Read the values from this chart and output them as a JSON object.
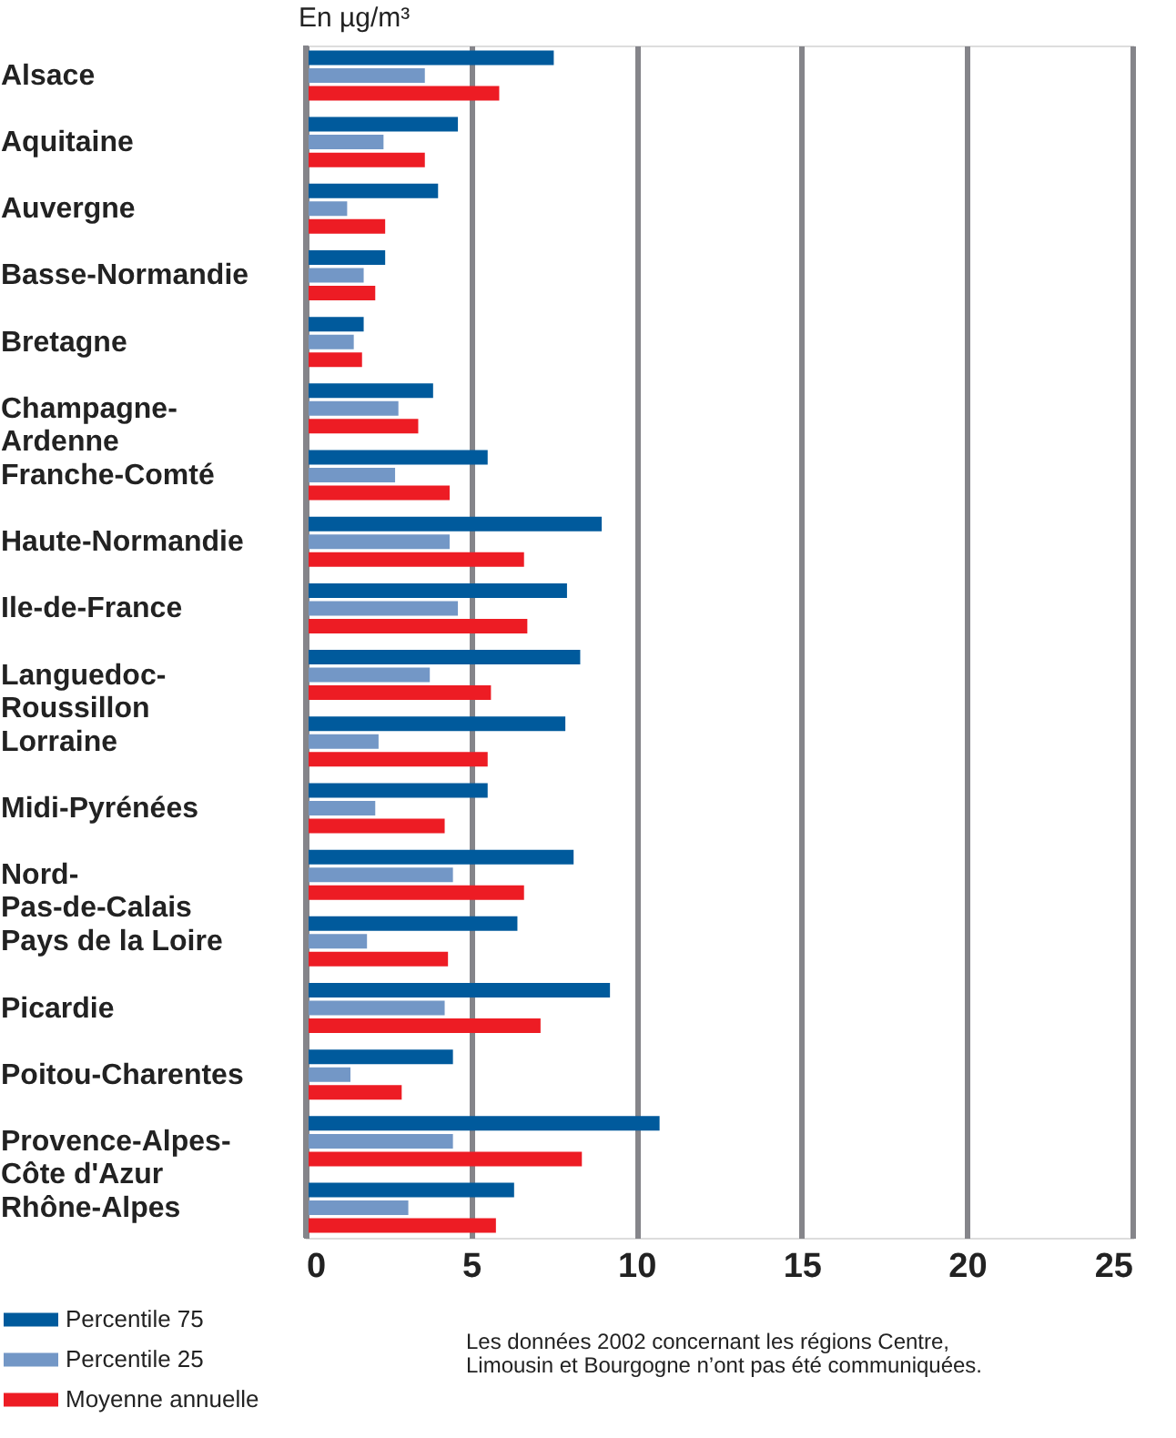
{
  "chart_data": {
    "type": "bar",
    "orientation": "horizontal",
    "xlabel": "En µg/m³",
    "categories": [
      "Alsace",
      "Aquitaine",
      "Auvergne",
      "Basse-Normandie",
      "Bretagne",
      "Champagne-Ardenne",
      "Franche-Comté",
      "Haute-Normandie",
      "Ile-de-France",
      "Languedoc-Roussillon",
      "Lorraine",
      "Midi-Pyrénées",
      "Nord-Pas-de-Calais",
      "Pays de la Loire",
      "Picardie",
      "Poitou-Charentes",
      "Provence-Alpes-Côte d'Azur",
      "Rhône-Alpes"
    ],
    "series": [
      {
        "name": "Percentile 75",
        "color": "#005a9c",
        "values": [
          7.5,
          4.6,
          4.0,
          2.4,
          1.75,
          3.85,
          5.5,
          8.95,
          7.9,
          8.3,
          7.85,
          5.5,
          8.1,
          6.4,
          9.2,
          4.45,
          10.7,
          6.3
        ]
      },
      {
        "name": "Percentile 25",
        "color": "#7397c6",
        "values": [
          3.6,
          2.35,
          1.25,
          1.75,
          1.45,
          2.8,
          2.7,
          4.35,
          4.6,
          3.75,
          2.2,
          2.1,
          4.45,
          1.85,
          4.2,
          1.35,
          4.45,
          3.1
        ]
      },
      {
        "name": "Moyenne annuelle",
        "color": "#ed1c24",
        "values": [
          5.85,
          3.6,
          2.4,
          2.1,
          1.7,
          3.4,
          4.35,
          6.6,
          6.7,
          5.6,
          5.5,
          4.2,
          6.6,
          4.3,
          7.1,
          2.9,
          8.35,
          5.75
        ]
      }
    ],
    "xlim": [
      0,
      25
    ],
    "xticks": [
      0,
      5,
      10,
      15,
      20,
      25
    ],
    "grid": "x",
    "legend": "bottom left",
    "annotations": [
      "Les données 2002 concernant les régions Centre, Limousin et Bourgogne n’ont pas été communiquées."
    ]
  }
}
